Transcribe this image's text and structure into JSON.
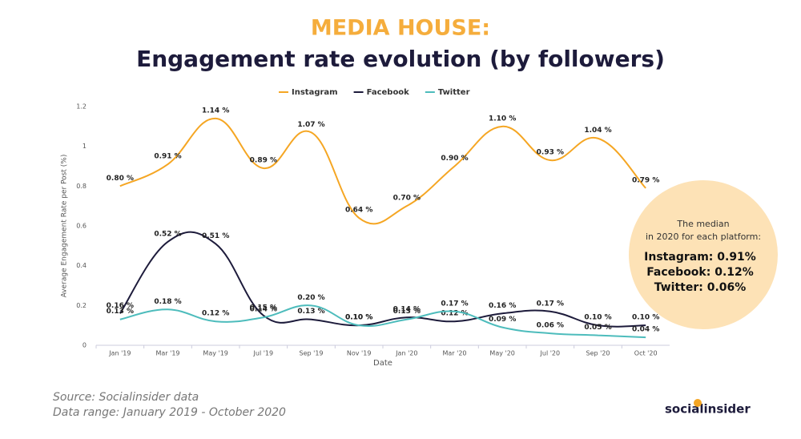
{
  "chart_data": {
    "type": "line",
    "supertitle": "MEDIA HOUSE:",
    "title": "Engagement rate evolution (by followers)",
    "xlabel": "Date",
    "ylabel": "Average Engagement Rate per Post (%)",
    "categories": [
      "Jan '19",
      "Mar '19",
      "May '19",
      "Jul '19",
      "Sep '19",
      "Nov '19",
      "Jan '20",
      "Mar '20",
      "May '20",
      "Jul '20",
      "Sep '20",
      "Oct '20"
    ],
    "ylim": [
      0,
      1.2
    ],
    "yticks": [
      0,
      0.2,
      0.4,
      0.6,
      0.8,
      1,
      1.2
    ],
    "grid": false,
    "legend": "top",
    "series": [
      {
        "name": "Instagram",
        "color": "#f5a623",
        "values": [
          0.8,
          0.91,
          1.14,
          0.89,
          1.07,
          0.64,
          0.7,
          0.9,
          1.1,
          0.93,
          1.04,
          0.79
        ],
        "value_labels": [
          "0.80 %",
          "0.91 %",
          "1.14 %",
          "0.89 %",
          "1.07 %",
          "0.64 %",
          "0.70 %",
          "0.90 %",
          "1.10 %",
          "0.93 %",
          "1.04 %",
          "0.79 %"
        ]
      },
      {
        "name": "Facebook",
        "color": "#1d1b3b",
        "values": [
          0.16,
          0.52,
          0.51,
          0.15,
          0.13,
          0.1,
          0.14,
          0.12,
          0.16,
          0.17,
          0.1,
          0.1
        ],
        "value_labels": [
          "0.16 %",
          "0.52 %",
          "0.51 %",
          "0.15 %",
          "0.13 %",
          "0.10 %",
          "0.14 %",
          "0.12 %",
          "0.16 %",
          "0.17 %",
          "0.10 %",
          "0.10 %"
        ]
      },
      {
        "name": "Twitter",
        "color": "#4dbcbc",
        "values": [
          0.13,
          0.18,
          0.12,
          0.14,
          0.2,
          0.1,
          0.13,
          0.17,
          0.09,
          0.06,
          0.05,
          0.04
        ],
        "value_labels": [
          "0.13 %",
          "0.18 %",
          "0.12 %",
          "0.14 %",
          "0.20 %",
          "0.10 %",
          "0.13 %",
          "0.17 %",
          "0.09 %",
          "0.06 %",
          "0.05 %",
          "0.04 %"
        ]
      }
    ],
    "note": {
      "lines": [
        "The median",
        "in 2020 for each platform:"
      ],
      "values": [
        "Instagram: 0.91%",
        "Facebook: 0.12%",
        "Twitter: 0.06%"
      ]
    }
  },
  "footer": {
    "source": "Source: Socialinsider data",
    "range": "Data range: January 2019 - October 2020",
    "brand": "socialinsider"
  }
}
